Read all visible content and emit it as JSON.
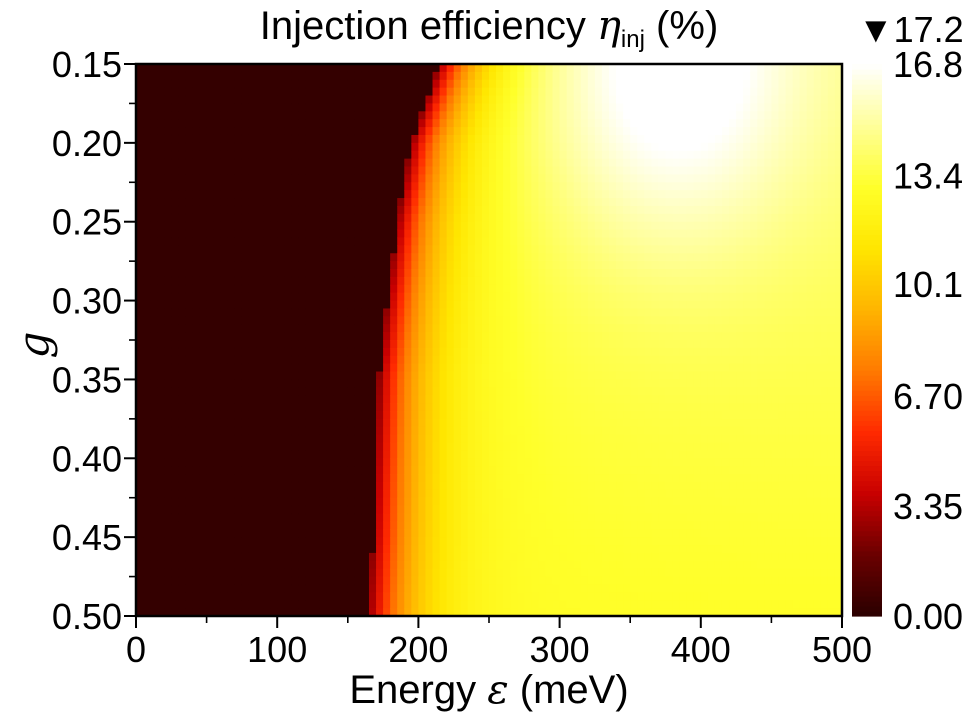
{
  "chart_data": {
    "type": "heatmap",
    "title_prefix": "Injection efficiency ",
    "title_symbol": "η",
    "title_subscript": "inj",
    "title_suffix": " (%)",
    "xlabel_prefix": "Energy ",
    "xlabel_symbol": "ε",
    "xlabel_suffix": " (meV)",
    "ylabel": "g",
    "x_ticks": [
      0,
      100,
      200,
      300,
      400,
      500
    ],
    "x_tick_labels": [
      "0",
      "100",
      "200",
      "300",
      "400",
      "500"
    ],
    "xlim": [
      0,
      500
    ],
    "y_ticks": [
      0.15,
      0.2,
      0.25,
      0.3,
      0.35,
      0.4,
      0.45,
      0.5
    ],
    "y_tick_labels": [
      "0.15",
      "0.20",
      "0.25",
      "0.30",
      "0.35",
      "0.40",
      "0.45",
      "0.50"
    ],
    "ylim": [
      0.15,
      0.5
    ],
    "y_axis_inverted": true,
    "colorbar": {
      "ticks": [
        0.0,
        3.35,
        6.7,
        10.1,
        13.4,
        16.8
      ],
      "tick_labels": [
        "0.00",
        "3.35",
        "6.70",
        "10.1",
        "13.4",
        "16.8"
      ],
      "max_label": "▼17.2",
      "range": [
        0,
        16.8
      ],
      "colors": [
        "#2a0000",
        "#6a0000",
        "#c80000",
        "#ff2a00",
        "#ff7a00",
        "#ffb400",
        "#ffe600",
        "#ffff2a",
        "#ffff9a",
        "#ffffff"
      ]
    },
    "grid": false,
    "cell_size": {
      "energy_meV": 5,
      "g": 0.005
    },
    "onset_energy_meV": {
      "g": [
        0.15,
        0.2,
        0.25,
        0.3,
        0.35,
        0.4,
        0.45,
        0.5
      ],
      "energy": [
        215,
        195,
        185,
        178,
        172,
        170,
        168,
        165
      ]
    },
    "peak": {
      "g": 0.15,
      "energy_meV": 380,
      "value": 17.2
    },
    "value_at_high_energy": {
      "g": [
        0.15,
        0.3,
        0.5
      ],
      "value": [
        16.0,
        13.6,
        12.0
      ]
    }
  }
}
